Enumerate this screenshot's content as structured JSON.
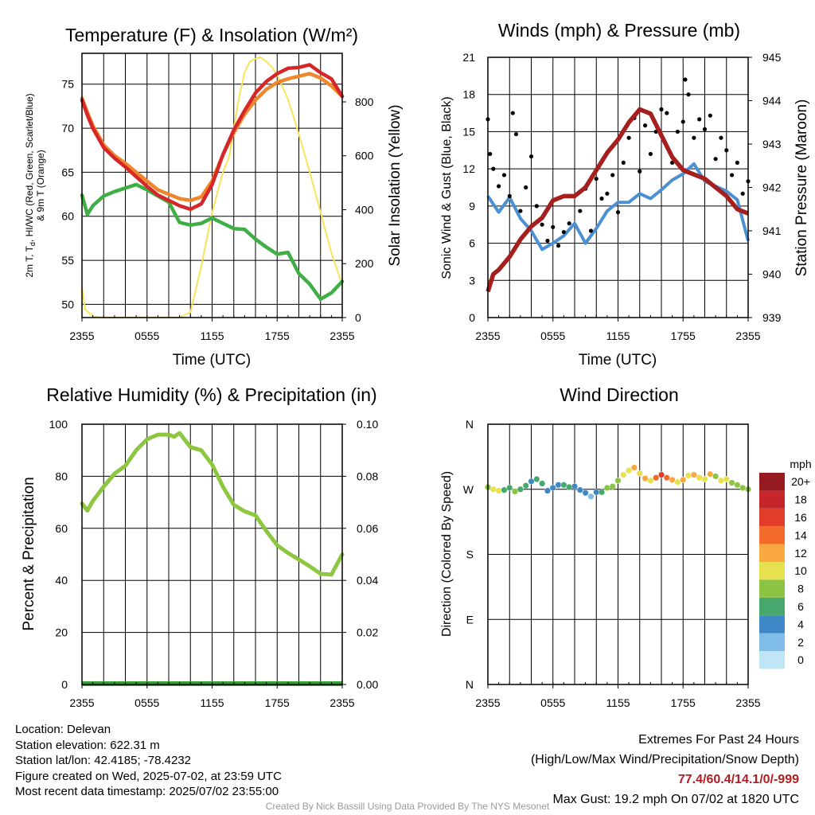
{
  "chart_data": [
    {
      "type": "line",
      "title": "Temperature (F) & Insolation (W/m²)",
      "xlabel": "Time (UTC)",
      "ylabel": "2m T, Td, HI/WC (Red, Green, Scarlet/Blue) & 9m T (Orange)",
      "ylabel_line1": "2m T, T",
      "ylabel_sub": "d",
      "ylabel_line1_rest": ", HI/WC (Red, Green, Scarlet/Blue)",
      "ylabel_line2": "& 9m T (Orange)",
      "y2label": "Solar Insolation (Yellow)",
      "x_ticks": [
        "2355",
        "0555",
        "1155",
        "1755",
        "2355"
      ],
      "ylim": [
        48.5,
        78.5
      ],
      "y_ticks": [
        50,
        55,
        60,
        65,
        70,
        75
      ],
      "y2lim": [
        0,
        980
      ],
      "y2_ticks": [
        0,
        200,
        400,
        600,
        800
      ],
      "series": [
        {
          "color": "#d62728",
          "axis": "left",
          "x": [
            0,
            0.5,
            1,
            2,
            3,
            4,
            5,
            6,
            7,
            8,
            9,
            10,
            11,
            12,
            13,
            14,
            15,
            16,
            17,
            18,
            19,
            20,
            21,
            22,
            23,
            24
          ],
          "y": [
            73.2,
            71.5,
            70,
            67.8,
            66.6,
            65.6,
            64.5,
            63.4,
            62.4,
            61.8,
            61.2,
            60.8,
            61.4,
            63.6,
            67,
            69.8,
            72,
            74,
            75.3,
            76.2,
            76.8,
            76.9,
            77.2,
            76.3,
            75.6,
            73.6
          ]
        },
        {
          "color": "#f0862c",
          "axis": "left",
          "x": [
            0,
            0.5,
            1,
            2,
            3,
            4,
            5,
            6,
            7,
            8,
            9,
            10,
            11,
            12,
            13,
            14,
            15,
            16,
            17,
            18,
            19,
            20,
            21,
            22,
            23,
            24
          ],
          "y": [
            73.4,
            71.8,
            70.3,
            68.1,
            66.9,
            66,
            65,
            64,
            63,
            62.5,
            62,
            61.8,
            62.2,
            64,
            67,
            69.5,
            71.6,
            73.2,
            74.4,
            75.2,
            75.6,
            75.9,
            76.2,
            75.7,
            74.8,
            73.6
          ]
        },
        {
          "color": "#3fae45",
          "axis": "left",
          "x": [
            0,
            0.5,
            1,
            2,
            3,
            4,
            5,
            6,
            7,
            8,
            9,
            10,
            11,
            12,
            13,
            14,
            15,
            16,
            17,
            18,
            19,
            20,
            21,
            22,
            23,
            24
          ],
          "y": [
            62.4,
            60.2,
            61.2,
            62.3,
            62.8,
            63.2,
            63.6,
            63.0,
            62.3,
            61.6,
            59.3,
            59.0,
            59.2,
            59.8,
            59.2,
            58.6,
            58.5,
            57.4,
            56.5,
            55.7,
            55.9,
            53.5,
            52.3,
            50.6,
            51.3,
            52.6
          ]
        },
        {
          "color": "#f9e35a",
          "axis": "right",
          "x": [
            0,
            0.3,
            1,
            2,
            3,
            4,
            5,
            6,
            7,
            8,
            9,
            10,
            11,
            12,
            13,
            13.6,
            14,
            14.5,
            15,
            15.5,
            16,
            16.5,
            17,
            17.5,
            18,
            19,
            20,
            21,
            22,
            23,
            24
          ],
          "y": [
            110,
            30,
            5,
            0,
            0,
            0,
            0,
            0,
            0,
            0,
            0,
            20,
            190,
            390,
            540,
            600,
            700,
            820,
            910,
            950,
            960,
            965,
            950,
            930,
            900,
            810,
            680,
            540,
            390,
            240,
            120
          ]
        }
      ]
    },
    {
      "type": "line",
      "title": "Winds (mph) & Pressure (mb)",
      "xlabel": "Time (UTC)",
      "ylabel": "Sonic Wind & Gust (Blue, Black)",
      "y2label": "Station Pressure (Maroon)",
      "x_ticks": [
        "2355",
        "0555",
        "1155",
        "1755",
        "2355"
      ],
      "ylim": [
        0,
        21
      ],
      "y_ticks": [
        0,
        3,
        6,
        9,
        12,
        15,
        18,
        21
      ],
      "y2lim": [
        939,
        945
      ],
      "y2_ticks": [
        939,
        940,
        941,
        942,
        943,
        944,
        945
      ],
      "series": [
        {
          "color": "#4a90d2",
          "axis": "left",
          "x": [
            0,
            1,
            2,
            3,
            4,
            5,
            6,
            7,
            8,
            9,
            10,
            11,
            12,
            13,
            14,
            15,
            16,
            17,
            18,
            19,
            20,
            21,
            22,
            23,
            24
          ],
          "y": [
            9.8,
            8.5,
            9.7,
            8.0,
            7.0,
            5.5,
            6.0,
            6.6,
            7.6,
            6.0,
            7.2,
            8.6,
            9.3,
            9.3,
            10.0,
            9.6,
            10.3,
            11.1,
            11.6,
            12.4,
            11.0,
            10.6,
            10.2,
            9.5,
            6.2
          ]
        },
        {
          "color": "#a51f1f",
          "axis": "right",
          "x": [
            0,
            0.5,
            1,
            2,
            3,
            4,
            5,
            6,
            7,
            8,
            9,
            10,
            11,
            12,
            13,
            14,
            15,
            16,
            17,
            18,
            19,
            20,
            21,
            22,
            23,
            24
          ],
          "y": [
            939.6,
            940.0,
            940.1,
            940.4,
            940.8,
            941.1,
            941.3,
            941.7,
            941.8,
            941.8,
            942.0,
            942.4,
            942.8,
            943.1,
            943.5,
            943.8,
            943.7,
            943.2,
            942.7,
            942.4,
            942.3,
            942.2,
            942.0,
            941.8,
            941.5,
            941.4
          ]
        },
        {
          "color": "#000000",
          "axis": "left",
          "marker": "dot",
          "x": [
            0,
            0.2,
            0.5,
            1,
            1.5,
            2,
            2.3,
            2.6,
            3,
            3.5,
            4,
            4.5,
            5,
            5.5,
            6,
            6.5,
            7,
            7.5,
            8,
            8.5,
            9,
            9.5,
            10,
            10.5,
            11,
            11.5,
            12,
            12.5,
            13,
            13.5,
            14,
            14.5,
            15,
            15.5,
            16,
            16.5,
            17,
            17.5,
            18,
            18.2,
            18.5,
            19,
            19.5,
            20,
            20.5,
            21,
            21.5,
            22,
            22.5,
            23,
            23.5,
            24
          ],
          "y": [
            16,
            13.2,
            12,
            10.6,
            11.5,
            9.8,
            16.5,
            14.8,
            8.6,
            10.5,
            13,
            9.0,
            7.5,
            6.2,
            7.3,
            5.8,
            6.9,
            7.6,
            9.8,
            8.6,
            10.4,
            7.0,
            11.2,
            9.6,
            10.0,
            11.5,
            8.5,
            12.5,
            14.5,
            16.1,
            11.8,
            15.5,
            13.2,
            15.0,
            16.8,
            16.5,
            12.5,
            15.0,
            15.8,
            19.2,
            18.0,
            14.5,
            16.0,
            15.2,
            16.3,
            12.8,
            14.5,
            13.5,
            11.5,
            12.5,
            10.0,
            11.0
          ]
        }
      ]
    },
    {
      "type": "line",
      "title": "Relative Humidity (%) & Precipitation (in)",
      "ylabel": "Percent & Precipitation",
      "x_ticks": [
        "2355",
        "0555",
        "1155",
        "1755",
        "2355"
      ],
      "ylim": [
        0,
        100
      ],
      "y_ticks": [
        0,
        20,
        40,
        60,
        80,
        100
      ],
      "y2lim": [
        0,
        0.1
      ],
      "y2_ticks": [
        "0.00",
        "0.02",
        "0.04",
        "0.06",
        "0.08",
        "0.10"
      ],
      "series": [
        {
          "color": "#8dc63f",
          "axis": "left",
          "x": [
            0,
            0.5,
            1,
            2,
            3,
            4,
            5,
            6,
            7,
            8,
            8.5,
            9,
            10,
            11,
            12,
            13,
            14,
            15,
            16,
            17,
            18,
            19,
            20,
            21,
            22,
            23,
            24
          ],
          "y": [
            69.5,
            66.8,
            70.5,
            76,
            81,
            84,
            90,
            94.2,
            96,
            96,
            95.2,
            96.6,
            91.2,
            90,
            84.5,
            76,
            69,
            66.5,
            65,
            59,
            53.5,
            50.5,
            48,
            45.4,
            42.5,
            42.2,
            50
          ]
        },
        {
          "color": "#3a9e3a",
          "axis": "right",
          "x": [
            0,
            24
          ],
          "y": [
            0,
            0
          ]
        }
      ]
    },
    {
      "type": "scatter",
      "title": "Wind Direction",
      "ylabel": "Direction (Colored By Speed)",
      "x_ticks": [
        "2355",
        "0555",
        "1155",
        "1755",
        "2355"
      ],
      "y_ticks": [
        "N",
        "E",
        "S",
        "W",
        "N"
      ],
      "ylim": [
        0,
        360
      ],
      "colorbar_title": "mph",
      "colorbar_labels": [
        "0",
        "2",
        "4",
        "6",
        "8",
        "10",
        "12",
        "14",
        "16",
        "18",
        "20+"
      ],
      "colorbar_colors": [
        "#bfe6f7",
        "#7fbde8",
        "#3f88c5",
        "#46a86c",
        "#8bc443",
        "#e7e14f",
        "#f9a740",
        "#f26a2a",
        "#e23d29",
        "#c4262a",
        "#961b1e"
      ],
      "x": [
        0,
        0.5,
        1,
        1.5,
        2,
        2.5,
        3,
        3.5,
        4,
        4.5,
        5,
        5.5,
        6,
        6.5,
        7,
        7.5,
        8,
        8.5,
        9,
        9.5,
        10,
        10.5,
        11,
        11.5,
        12,
        12.5,
        13,
        13.5,
        14,
        14.5,
        15,
        15.5,
        16,
        16.5,
        17,
        17.5,
        18,
        18.5,
        19,
        19.5,
        20,
        20.5,
        21,
        21.5,
        22,
        22.5,
        23,
        23.5,
        24
      ],
      "y": [
        273,
        270,
        268,
        269,
        272,
        267,
        270,
        275,
        281,
        284,
        278,
        268,
        272,
        276,
        276,
        273,
        274,
        269,
        265,
        260,
        266,
        266,
        272,
        274,
        282,
        290,
        296,
        300,
        292,
        285,
        282,
        286,
        290,
        286,
        283,
        280,
        283,
        289,
        290,
        286,
        284,
        291,
        288,
        282,
        284,
        279,
        276,
        272,
        270
      ],
      "speed": [
        8,
        9,
        9,
        6,
        5,
        8,
        6,
        5,
        4,
        6,
        5,
        3,
        4,
        4,
        5,
        5,
        4,
        4,
        3,
        2,
        4,
        6,
        7,
        8,
        8,
        9,
        9,
        11,
        10,
        12,
        9,
        13,
        15,
        14,
        11,
        10,
        12,
        10,
        11,
        9,
        10,
        11,
        8,
        10,
        9,
        8,
        8,
        7,
        8
      ]
    }
  ],
  "info": {
    "location": "Location: Delevan",
    "elevation": "Station elevation: 622.31 m",
    "latlon": "Station lat/lon: 42.4185; -78.4232",
    "created": "Figure created on Wed, 2025-07-02, at 23:59 UTC",
    "recent": "Most recent data timestamp: 2025/07/02 23:55:00"
  },
  "extremes": {
    "title": "Extremes For Past 24 Hours",
    "subtitle": "(High/Low/Max Wind/Precipitation/Snow Depth)",
    "values": "77.4/60.4/14.1/0/-999",
    "gust": "Max Gust: 19.2 mph On 07/02 at 1820 UTC"
  },
  "credit": "Created By Nick Bassill Using Data Provided By The NYS Mesonet"
}
